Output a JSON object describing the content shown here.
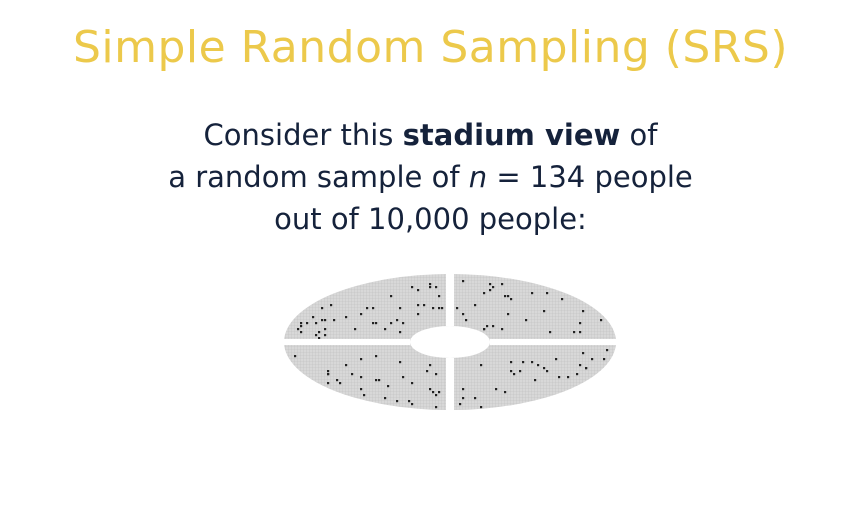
{
  "slide": {
    "title": "Simple Random Sampling (SRS)",
    "line1_prefix": "Consider this ",
    "line1_bold": "stadium view",
    "line1_suffix": " of",
    "line2_prefix": "a random sample of ",
    "line2_var": "n",
    "line2_suffix": " = 134 people",
    "line3": "out of 10,000 people:"
  },
  "diagram": {
    "sample_size": 134,
    "population_size": 10000,
    "colors": {
      "title": "#ecc94b",
      "text": "#15223b",
      "seat_fill": "#d8d8d8",
      "grid": "#bdbdbd",
      "sampled": "#222222"
    }
  }
}
